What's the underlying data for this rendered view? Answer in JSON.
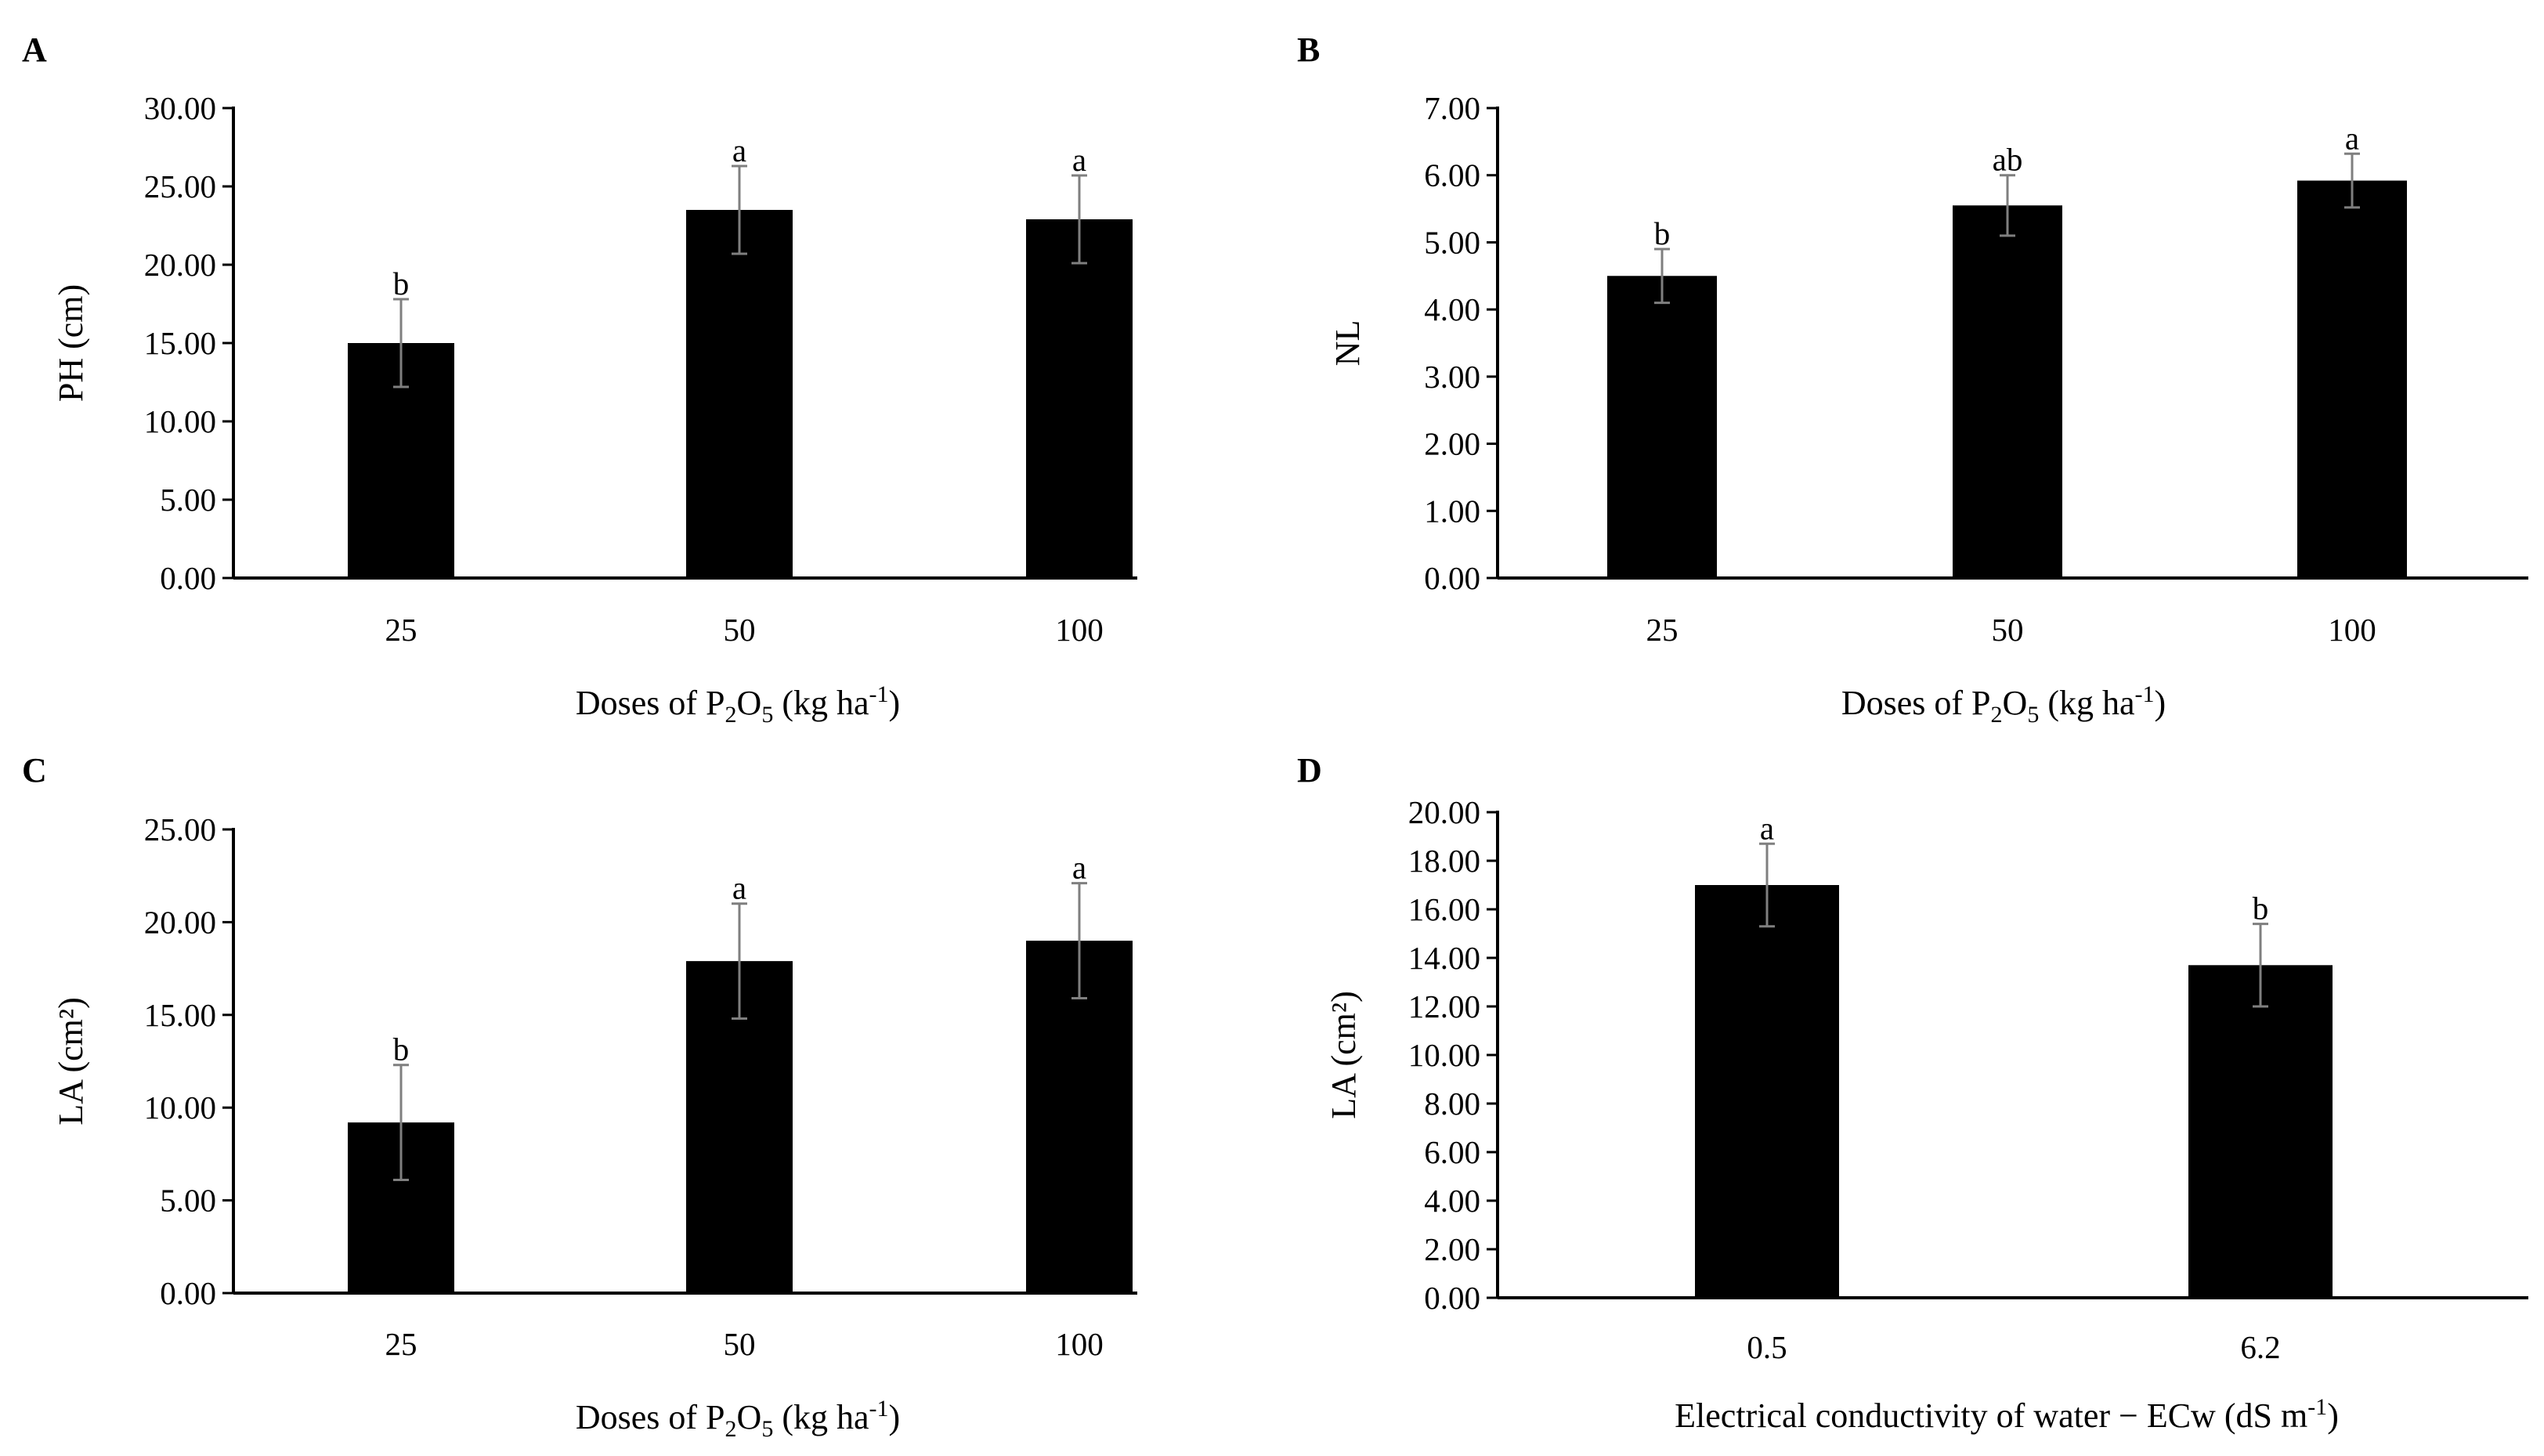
{
  "chart_data": [
    {
      "panel": "A",
      "type": "bar",
      "categories": [
        "25",
        "50",
        "100"
      ],
      "values": [
        15.0,
        23.5,
        22.9
      ],
      "errors": [
        2.8,
        2.8,
        2.8
      ],
      "letters": [
        "b",
        "a",
        "a"
      ],
      "ylabel": "PH (cm)",
      "xlabel_parts": [
        "Doses of P",
        "2",
        "O",
        "5",
        " (kg ha",
        "-1",
        ")"
      ],
      "ylim": [
        0,
        30
      ],
      "yticks": [
        "0.00",
        "5.00",
        "10.00",
        "15.00",
        "20.00",
        "25.00",
        "30.00"
      ]
    },
    {
      "panel": "B",
      "type": "bar",
      "categories": [
        "25",
        "50",
        "100"
      ],
      "values": [
        4.5,
        5.55,
        5.92
      ],
      "errors": [
        0.4,
        0.45,
        0.4
      ],
      "letters": [
        "b",
        "ab",
        "a"
      ],
      "ylabel": "NL",
      "xlabel_parts": [
        "Doses of P",
        "2",
        "O",
        "5",
        " (kg ha",
        "-1",
        ")"
      ],
      "ylim": [
        0,
        7
      ],
      "yticks": [
        "0.00",
        "1.00",
        "2.00",
        "3.00",
        "4.00",
        "5.00",
        "6.00",
        "7.00"
      ]
    },
    {
      "panel": "C",
      "type": "bar",
      "categories": [
        "25",
        "50",
        "100"
      ],
      "values": [
        9.2,
        17.9,
        19.0
      ],
      "errors": [
        3.1,
        3.1,
        3.1
      ],
      "letters": [
        "b",
        "a",
        "a"
      ],
      "ylabel": "LA (cm²)",
      "xlabel_parts": [
        "Doses of P",
        "2",
        "O",
        "5",
        " (kg ha",
        "-1",
        ")"
      ],
      "ylim": [
        0,
        25
      ],
      "yticks": [
        "0.00",
        "5.00",
        "10.00",
        "15.00",
        "20.00",
        "25.00"
      ]
    },
    {
      "panel": "D",
      "type": "bar",
      "categories": [
        "0.5",
        "6.2"
      ],
      "values": [
        17.0,
        13.7
      ],
      "errors": [
        1.7,
        1.7
      ],
      "letters": [
        "a",
        "b"
      ],
      "ylabel": "LA (cm²)",
      "xlabel_parts": [
        "Electrical conductivity of water − ECw (dS m",
        "-1",
        ")"
      ],
      "ylim": [
        0,
        20
      ],
      "yticks": [
        "0.00",
        "2.00",
        "4.00",
        "6.00",
        "8.00",
        "10.00",
        "12.00",
        "14.00",
        "16.00",
        "18.00",
        "20.00"
      ]
    }
  ]
}
